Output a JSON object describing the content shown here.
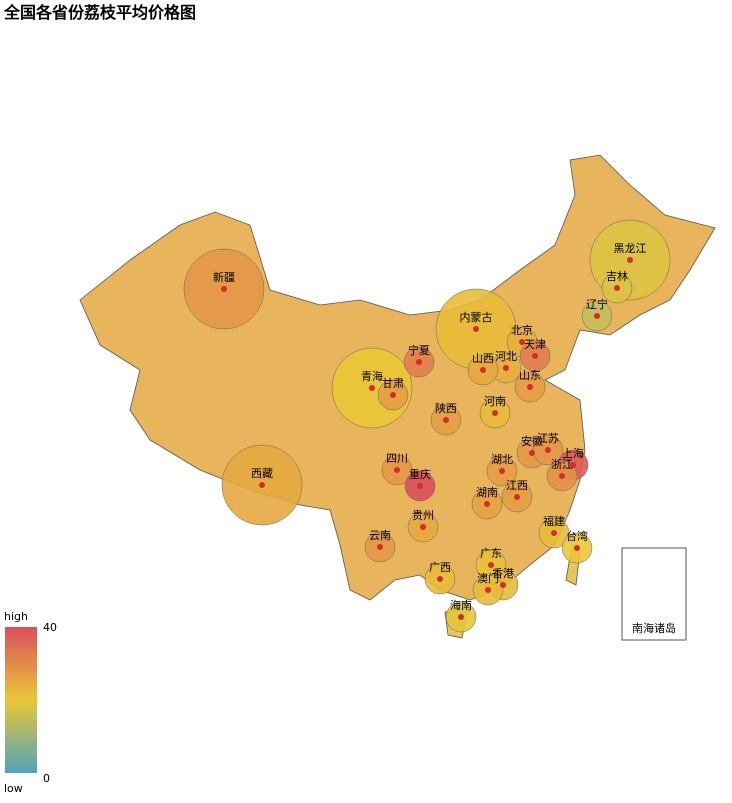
{
  "title": "全国各省份荔枝平均价格图",
  "visual_map": {
    "min": 0,
    "max": 40,
    "high_text": "high",
    "low_text": "low",
    "colors": [
      "#50a3ba",
      "#eac736",
      "#d94e5d"
    ]
  },
  "inset_label": "南海诸岛",
  "regions": [
    {
      "name": "新疆",
      "value": 28
    },
    {
      "name": "西藏",
      "value": 25
    },
    {
      "name": "青海",
      "value": 20
    },
    {
      "name": "甘肃",
      "value": 27
    },
    {
      "name": "宁夏",
      "value": 32
    },
    {
      "name": "内蒙古",
      "value": 22
    },
    {
      "name": "黑龙江",
      "value": 18
    },
    {
      "name": "吉林",
      "value": 18
    },
    {
      "name": "辽宁",
      "value": 15
    },
    {
      "name": "北京",
      "value": 24
    },
    {
      "name": "天津",
      "value": 32
    },
    {
      "name": "河北",
      "value": 24
    },
    {
      "name": "山西",
      "value": 25
    },
    {
      "name": "山东",
      "value": 27
    },
    {
      "name": "河南",
      "value": 22
    },
    {
      "name": "陕西",
      "value": 27
    },
    {
      "name": "四川",
      "value": 28
    },
    {
      "name": "重庆",
      "value": 40
    },
    {
      "name": "湖北",
      "value": 27
    },
    {
      "name": "安徽",
      "value": 28
    },
    {
      "name": "江苏",
      "value": 28
    },
    {
      "name": "上海",
      "value": 38
    },
    {
      "name": "浙江",
      "value": 29
    },
    {
      "name": "江西",
      "value": 27
    },
    {
      "name": "湖南",
      "value": 26
    },
    {
      "name": "贵州",
      "value": 25
    },
    {
      "name": "云南",
      "value": 28
    },
    {
      "name": "广西",
      "value": 22
    },
    {
      "name": "广东",
      "value": 21
    },
    {
      "name": "福建",
      "value": 22
    },
    {
      "name": "台湾",
      "value": 20
    },
    {
      "name": "海南",
      "value": 19
    },
    {
      "name": "香港",
      "value": 22
    },
    {
      "name": "澳门",
      "value": 22
    }
  ]
}
